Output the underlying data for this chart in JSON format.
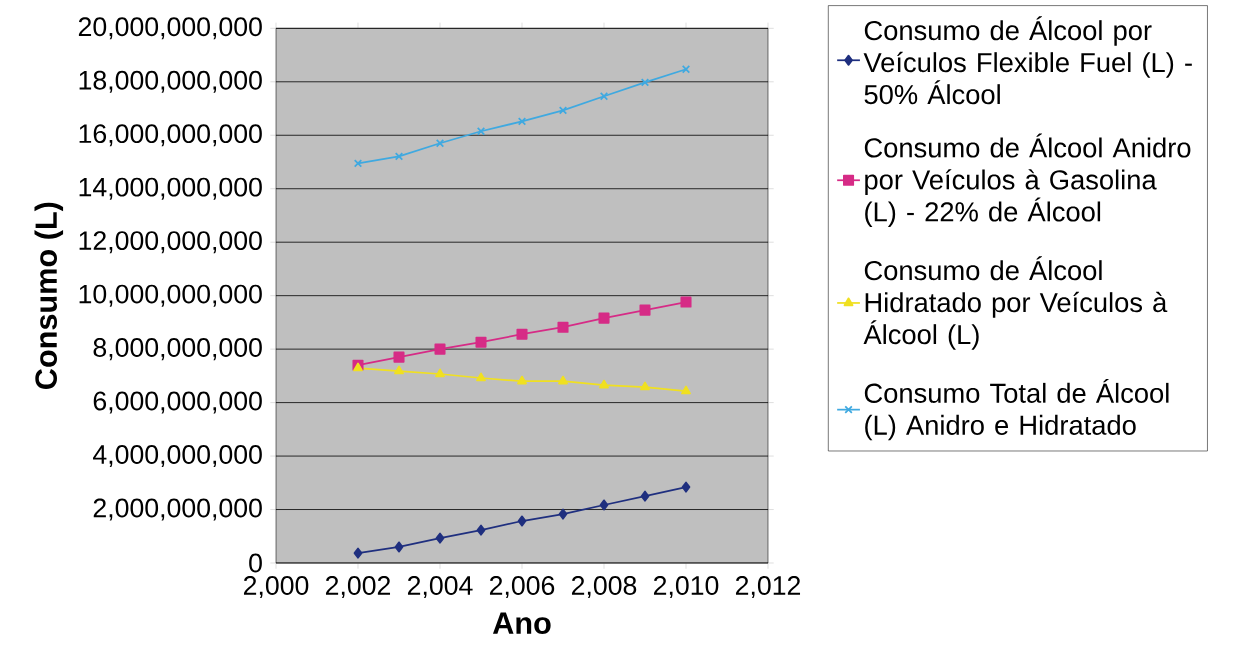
{
  "chart_data": {
    "type": "line",
    "xlabel": "Ano",
    "ylabel": "Consumo (L)",
    "x": [
      2002,
      2003,
      2004,
      2005,
      2006,
      2007,
      2008,
      2009,
      2010
    ],
    "xlim": [
      2000,
      2012
    ],
    "xticks": [
      {
        "value": 2000,
        "label": "2,000"
      },
      {
        "value": 2002,
        "label": "2,002"
      },
      {
        "value": 2004,
        "label": "2,004"
      },
      {
        "value": 2006,
        "label": "2,006"
      },
      {
        "value": 2008,
        "label": "2,008"
      },
      {
        "value": 2010,
        "label": "2,010"
      },
      {
        "value": 2012,
        "label": "2,012"
      }
    ],
    "ylim": [
      0,
      20000000000
    ],
    "yticks": [
      0,
      {
        "value": 2000000000,
        "label": "2,000,000,000"
      },
      {
        "value": 4000000000,
        "label": "4,000,000,000"
      },
      {
        "value": 6000000000,
        "label": "6,000,000,000"
      },
      {
        "value": 8000000000,
        "label": "8,000,000,000"
      },
      {
        "value": 10000000000,
        "label": "10,000,000,000"
      },
      {
        "value": 12000000000,
        "label": "12,000,000,000"
      },
      {
        "value": 14000000000,
        "label": "14,000,000,000"
      },
      {
        "value": 16000000000,
        "label": "16,000,000,000"
      },
      {
        "value": 18000000000,
        "label": "18,000,000,000"
      },
      {
        "value": 20000000000,
        "label": "20,000,000,000"
      }
    ],
    "grid": "y",
    "legend": "right",
    "series": [
      {
        "name": "Consumo de Álcool por Veículos Flexible Fuel (L) - 50% Álcool",
        "color": "#1f2f7f",
        "marker": "diamond",
        "values": [
          370000000,
          600000000,
          930000000,
          1230000000,
          1570000000,
          1830000000,
          2170000000,
          2500000000,
          2840000000
        ]
      },
      {
        "name": "Consumo de Álcool Anidro por Veículos à Gasolina (L) - 22% de Álcool",
        "color": "#d62b86",
        "marker": "square",
        "values": [
          7400000000,
          7700000000,
          8000000000,
          8260000000,
          8560000000,
          8820000000,
          9160000000,
          9460000000,
          9760000000
        ]
      },
      {
        "name": "Consumo de Álcool Hidratado por Veículos à Álcool (L)",
        "color": "#f0e020",
        "marker": "triangle",
        "values": [
          7290000000,
          7180000000,
          7070000000,
          6920000000,
          6800000000,
          6800000000,
          6650000000,
          6580000000,
          6430000000
        ]
      },
      {
        "name": "Consumo Total de Álcool (L) Anidro e Hidratado",
        "color": "#3fa9e0",
        "marker": "cross",
        "values": [
          14950000000,
          15210000000,
          15700000000,
          16150000000,
          16520000000,
          16930000000,
          17460000000,
          17980000000,
          18470000000
        ]
      }
    ]
  }
}
